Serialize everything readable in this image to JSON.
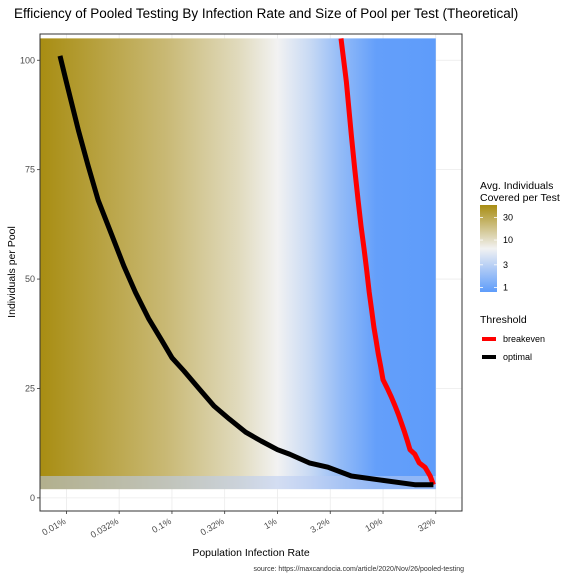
{
  "chart_data": {
    "type": "heatmap",
    "title": "Efficiency of Pooled Testing By Infection Rate and Size of Pool per Test (Theoretical)",
    "xlabel": "Population Infection Rate",
    "ylabel": "Individuals per Pool",
    "caption": "source: https://maxcandocia.com/article/2020/Nov/26/pooled-testing",
    "x_scale": "log10",
    "x_ticks": [
      {
        "value": 0.0001,
        "label": "0.01%"
      },
      {
        "value": 0.000316,
        "label": "0.032%"
      },
      {
        "value": 0.001,
        "label": "0.1%"
      },
      {
        "value": 0.00316,
        "label": "0.32%"
      },
      {
        "value": 0.01,
        "label": "1%"
      },
      {
        "value": 0.0316,
        "label": "3.2%"
      },
      {
        "value": 0.1,
        "label": "10%"
      },
      {
        "value": 0.316,
        "label": "32%"
      }
    ],
    "xlim": [
      5.62e-05,
      0.56
    ],
    "ylim": [
      -3,
      106
    ],
    "y_ticks": [
      0,
      25,
      50,
      75,
      100
    ],
    "heat_x_range": [
      5.62e-05,
      0.316
    ],
    "heat_y_range": [
      2,
      105
    ],
    "fill_legend": {
      "title_lines": [
        "Avg. Individuals",
        "Covered per Test"
      ],
      "scale": "log10",
      "range": [
        0.8,
        55
      ],
      "ticks": [
        {
          "value": 30,
          "label": "30"
        },
        {
          "value": 10,
          "label": "10"
        },
        {
          "value": 3,
          "label": "3"
        },
        {
          "value": 1,
          "label": "1"
        }
      ],
      "colors": {
        "low": "#5e9cfa",
        "mid": "#f2f2f2",
        "high": "#a88d12"
      }
    },
    "series": [
      {
        "name": "breakeven",
        "color": "#ff0000",
        "points": [
          [
            0.3,
            3
          ],
          [
            0.28,
            5
          ],
          [
            0.25,
            7
          ],
          [
            0.22,
            8
          ],
          [
            0.2,
            10
          ],
          [
            0.18,
            11
          ],
          [
            0.17,
            13
          ],
          [
            0.16,
            15
          ],
          [
            0.15,
            17
          ],
          [
            0.14,
            19
          ],
          [
            0.13,
            21
          ],
          [
            0.12,
            23
          ],
          [
            0.11,
            25
          ],
          [
            0.1,
            27
          ],
          [
            0.095,
            30
          ],
          [
            0.09,
            33
          ],
          [
            0.086,
            36
          ],
          [
            0.082,
            39
          ],
          [
            0.078,
            43
          ],
          [
            0.074,
            47
          ],
          [
            0.07,
            52
          ],
          [
            0.066,
            57
          ],
          [
            0.062,
            62
          ],
          [
            0.058,
            68
          ],
          [
            0.054,
            75
          ],
          [
            0.05,
            83
          ],
          [
            0.045,
            95
          ],
          [
            0.04,
            105
          ]
        ]
      },
      {
        "name": "optimal",
        "color": "#000000",
        "points": [
          [
            0.3,
            3
          ],
          [
            0.2,
            3
          ],
          [
            0.1,
            4
          ],
          [
            0.05,
            5
          ],
          [
            0.03,
            7
          ],
          [
            0.02,
            8
          ],
          [
            0.013,
            10
          ],
          [
            0.01,
            11
          ],
          [
            0.007,
            13
          ],
          [
            0.005,
            15
          ],
          [
            0.0035,
            18
          ],
          [
            0.0025,
            21
          ],
          [
            0.0018,
            25
          ],
          [
            0.0013,
            29
          ],
          [
            0.001,
            32
          ],
          [
            0.0008,
            36
          ],
          [
            0.0006,
            41
          ],
          [
            0.00045,
            47
          ],
          [
            0.00035,
            53
          ],
          [
            0.00027,
            60
          ],
          [
            0.0002,
            68
          ],
          [
            0.00016,
            76
          ],
          [
            0.00013,
            84
          ],
          [
            0.0001,
            95
          ],
          [
            8.7e-05,
            101
          ]
        ]
      }
    ],
    "threshold_legend": {
      "title": "Threshold",
      "entries": [
        "breakeven",
        "optimal"
      ]
    }
  }
}
